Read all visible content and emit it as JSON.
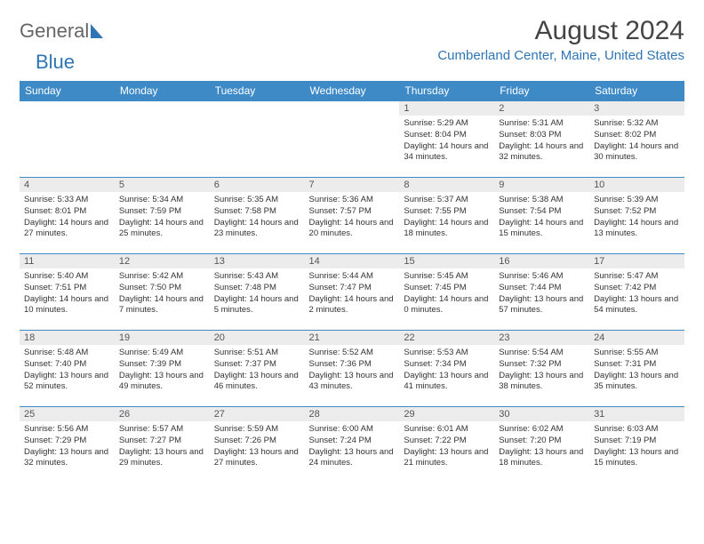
{
  "logo": {
    "text1": "General",
    "text2": "Blue"
  },
  "title": "August 2024",
  "location": "Cumberland Center, Maine, United States",
  "colors": {
    "header_bg": "#3d8ac7",
    "header_fg": "#ffffff",
    "daynum_bg": "#ececec",
    "accent": "#2e75b6"
  },
  "weekdays": [
    "Sunday",
    "Monday",
    "Tuesday",
    "Wednesday",
    "Thursday",
    "Friday",
    "Saturday"
  ],
  "weeks": [
    [
      null,
      null,
      null,
      null,
      {
        "n": "1",
        "sr": "5:29 AM",
        "ss": "8:04 PM",
        "dl": "14 hours and 34 minutes."
      },
      {
        "n": "2",
        "sr": "5:31 AM",
        "ss": "8:03 PM",
        "dl": "14 hours and 32 minutes."
      },
      {
        "n": "3",
        "sr": "5:32 AM",
        "ss": "8:02 PM",
        "dl": "14 hours and 30 minutes."
      }
    ],
    [
      {
        "n": "4",
        "sr": "5:33 AM",
        "ss": "8:01 PM",
        "dl": "14 hours and 27 minutes."
      },
      {
        "n": "5",
        "sr": "5:34 AM",
        "ss": "7:59 PM",
        "dl": "14 hours and 25 minutes."
      },
      {
        "n": "6",
        "sr": "5:35 AM",
        "ss": "7:58 PM",
        "dl": "14 hours and 23 minutes."
      },
      {
        "n": "7",
        "sr": "5:36 AM",
        "ss": "7:57 PM",
        "dl": "14 hours and 20 minutes."
      },
      {
        "n": "8",
        "sr": "5:37 AM",
        "ss": "7:55 PM",
        "dl": "14 hours and 18 minutes."
      },
      {
        "n": "9",
        "sr": "5:38 AM",
        "ss": "7:54 PM",
        "dl": "14 hours and 15 minutes."
      },
      {
        "n": "10",
        "sr": "5:39 AM",
        "ss": "7:52 PM",
        "dl": "14 hours and 13 minutes."
      }
    ],
    [
      {
        "n": "11",
        "sr": "5:40 AM",
        "ss": "7:51 PM",
        "dl": "14 hours and 10 minutes."
      },
      {
        "n": "12",
        "sr": "5:42 AM",
        "ss": "7:50 PM",
        "dl": "14 hours and 7 minutes."
      },
      {
        "n": "13",
        "sr": "5:43 AM",
        "ss": "7:48 PM",
        "dl": "14 hours and 5 minutes."
      },
      {
        "n": "14",
        "sr": "5:44 AM",
        "ss": "7:47 PM",
        "dl": "14 hours and 2 minutes."
      },
      {
        "n": "15",
        "sr": "5:45 AM",
        "ss": "7:45 PM",
        "dl": "14 hours and 0 minutes."
      },
      {
        "n": "16",
        "sr": "5:46 AM",
        "ss": "7:44 PM",
        "dl": "13 hours and 57 minutes."
      },
      {
        "n": "17",
        "sr": "5:47 AM",
        "ss": "7:42 PM",
        "dl": "13 hours and 54 minutes."
      }
    ],
    [
      {
        "n": "18",
        "sr": "5:48 AM",
        "ss": "7:40 PM",
        "dl": "13 hours and 52 minutes."
      },
      {
        "n": "19",
        "sr": "5:49 AM",
        "ss": "7:39 PM",
        "dl": "13 hours and 49 minutes."
      },
      {
        "n": "20",
        "sr": "5:51 AM",
        "ss": "7:37 PM",
        "dl": "13 hours and 46 minutes."
      },
      {
        "n": "21",
        "sr": "5:52 AM",
        "ss": "7:36 PM",
        "dl": "13 hours and 43 minutes."
      },
      {
        "n": "22",
        "sr": "5:53 AM",
        "ss": "7:34 PM",
        "dl": "13 hours and 41 minutes."
      },
      {
        "n": "23",
        "sr": "5:54 AM",
        "ss": "7:32 PM",
        "dl": "13 hours and 38 minutes."
      },
      {
        "n": "24",
        "sr": "5:55 AM",
        "ss": "7:31 PM",
        "dl": "13 hours and 35 minutes."
      }
    ],
    [
      {
        "n": "25",
        "sr": "5:56 AM",
        "ss": "7:29 PM",
        "dl": "13 hours and 32 minutes."
      },
      {
        "n": "26",
        "sr": "5:57 AM",
        "ss": "7:27 PM",
        "dl": "13 hours and 29 minutes."
      },
      {
        "n": "27",
        "sr": "5:59 AM",
        "ss": "7:26 PM",
        "dl": "13 hours and 27 minutes."
      },
      {
        "n": "28",
        "sr": "6:00 AM",
        "ss": "7:24 PM",
        "dl": "13 hours and 24 minutes."
      },
      {
        "n": "29",
        "sr": "6:01 AM",
        "ss": "7:22 PM",
        "dl": "13 hours and 21 minutes."
      },
      {
        "n": "30",
        "sr": "6:02 AM",
        "ss": "7:20 PM",
        "dl": "13 hours and 18 minutes."
      },
      {
        "n": "31",
        "sr": "6:03 AM",
        "ss": "7:19 PM",
        "dl": "13 hours and 15 minutes."
      }
    ]
  ],
  "labels": {
    "sunrise": "Sunrise:",
    "sunset": "Sunset:",
    "daylight": "Daylight:"
  }
}
